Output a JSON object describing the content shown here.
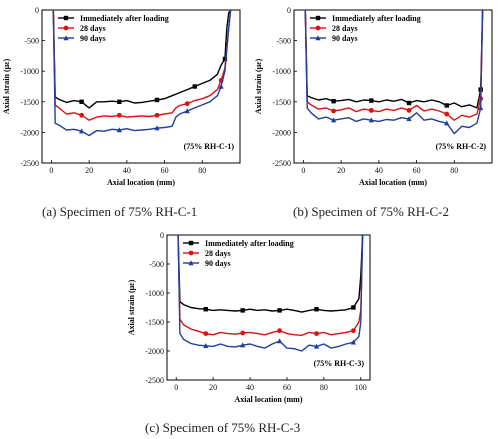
{
  "figure": {
    "captions": [
      "(a)  Specimen of 75% RH-C-1",
      "(b)  Specimen of 75% RH-C-2",
      "(c)  Specimen of 75% RH-C-3"
    ]
  },
  "chart_data": [
    {
      "type": "line",
      "panel_label": "(75% RH-C-1)",
      "xlabel": "Axial location (mm)",
      "ylabel": "Axial strain (με)",
      "xlim": [
        -5,
        100
      ],
      "ylim": [
        -2500,
        0
      ],
      "xticks": [
        0,
        20,
        40,
        60,
        80
      ],
      "yticks": [
        0,
        -500,
        -1000,
        -1500,
        -2000,
        -2500
      ],
      "grid": false,
      "legend_position": "top-left",
      "series": [
        {
          "name": "Immediately after loading",
          "color": "#000000",
          "marker": "square",
          "x": [
            1,
            2,
            4,
            8,
            12,
            16,
            20,
            24,
            28,
            32,
            36,
            40,
            44,
            48,
            52,
            56,
            60,
            64,
            68,
            72,
            76,
            80,
            84,
            88,
            90,
            92,
            93,
            94,
            95
          ],
          "y": [
            0,
            -1420,
            -1460,
            -1510,
            -1480,
            -1500,
            -1600,
            -1500,
            -1500,
            -1490,
            -1500,
            -1480,
            -1520,
            -1510,
            -1490,
            -1470,
            -1450,
            -1400,
            -1350,
            -1300,
            -1250,
            -1200,
            -1150,
            -1050,
            -900,
            -800,
            -300,
            -50,
            0
          ]
        },
        {
          "name": "28 days",
          "color": "#dd1111",
          "marker": "circle",
          "x": [
            1,
            2,
            4,
            8,
            12,
            16,
            20,
            24,
            28,
            32,
            36,
            40,
            44,
            48,
            52,
            56,
            60,
            64,
            66,
            68,
            72,
            76,
            80,
            84,
            88,
            90,
            92,
            94,
            95
          ],
          "y": [
            0,
            -1550,
            -1600,
            -1700,
            -1680,
            -1720,
            -1800,
            -1750,
            -1730,
            -1740,
            -1720,
            -1750,
            -1740,
            -1730,
            -1740,
            -1720,
            -1700,
            -1680,
            -1600,
            -1560,
            -1530,
            -1480,
            -1450,
            -1400,
            -1300,
            -1150,
            -950,
            -300,
            0
          ]
        },
        {
          "name": "90 days",
          "color": "#1f3fa0",
          "marker": "triangle",
          "x": [
            1,
            2,
            4,
            8,
            12,
            16,
            20,
            24,
            28,
            32,
            36,
            40,
            44,
            48,
            52,
            56,
            60,
            64,
            66,
            68,
            72,
            76,
            80,
            84,
            88,
            90,
            92,
            94,
            95
          ],
          "y": [
            0,
            -1850,
            -1880,
            -1960,
            -1950,
            -1980,
            -2050,
            -1970,
            -1980,
            -1950,
            -1960,
            -1940,
            -1970,
            -1960,
            -1950,
            -1930,
            -1920,
            -1900,
            -1750,
            -1700,
            -1650,
            -1600,
            -1550,
            -1500,
            -1400,
            -1250,
            -1000,
            -300,
            0
          ]
        }
      ]
    },
    {
      "type": "line",
      "panel_label": "(75% RH-C-2)",
      "xlabel": "Axial location (mm)",
      "ylabel": "Axial strain (με)",
      "xlim": [
        -5,
        100
      ],
      "ylim": [
        -2500,
        0
      ],
      "xticks": [
        0,
        20,
        40,
        60,
        80
      ],
      "yticks": [
        0,
        -500,
        -1000,
        -1500,
        -2000,
        -2500
      ],
      "grid": false,
      "legend_position": "top-left",
      "series": [
        {
          "name": "Immediately after loading",
          "color": "#000000",
          "marker": "square",
          "x": [
            1,
            2,
            4,
            8,
            12,
            16,
            20,
            24,
            28,
            32,
            36,
            40,
            44,
            48,
            52,
            56,
            60,
            64,
            68,
            72,
            76,
            80,
            84,
            88,
            92,
            94,
            95
          ],
          "y": [
            0,
            -1400,
            -1430,
            -1470,
            -1450,
            -1490,
            -1480,
            -1460,
            -1500,
            -1470,
            -1480,
            -1500,
            -1470,
            -1490,
            -1460,
            -1520,
            -1480,
            -1500,
            -1470,
            -1500,
            -1560,
            -1520,
            -1580,
            -1550,
            -1600,
            -1300,
            0
          ]
        },
        {
          "name": "28 days",
          "color": "#dd1111",
          "marker": "circle",
          "x": [
            1,
            2,
            4,
            8,
            12,
            16,
            20,
            24,
            28,
            32,
            36,
            40,
            44,
            48,
            52,
            56,
            60,
            64,
            68,
            72,
            76,
            80,
            84,
            88,
            92,
            94,
            95
          ],
          "y": [
            0,
            -1500,
            -1550,
            -1620,
            -1600,
            -1650,
            -1630,
            -1600,
            -1660,
            -1620,
            -1640,
            -1660,
            -1620,
            -1640,
            -1600,
            -1640,
            -1560,
            -1650,
            -1620,
            -1650,
            -1700,
            -1800,
            -1720,
            -1750,
            -1700,
            -1450,
            0
          ]
        },
        {
          "name": "90 days",
          "color": "#1f3fa0",
          "marker": "triangle",
          "x": [
            1,
            2,
            4,
            8,
            12,
            16,
            20,
            24,
            28,
            32,
            36,
            40,
            44,
            48,
            52,
            56,
            60,
            64,
            68,
            72,
            76,
            80,
            84,
            88,
            92,
            94,
            95
          ],
          "y": [
            0,
            -1600,
            -1680,
            -1780,
            -1750,
            -1800,
            -1780,
            -1760,
            -1820,
            -1780,
            -1800,
            -1820,
            -1790,
            -1800,
            -1760,
            -1780,
            -1680,
            -1800,
            -1780,
            -1820,
            -1850,
            -2020,
            -1900,
            -1920,
            -1850,
            -1600,
            0
          ]
        }
      ]
    },
    {
      "type": "line",
      "panel_label": "(75% RH-C-3)",
      "xlabel": "Axial location (mm)",
      "ylabel": "Axial strain (με)",
      "xlim": [
        -5,
        105
      ],
      "ylim": [
        -2500,
        0
      ],
      "xticks": [
        0,
        20,
        40,
        60,
        80,
        100
      ],
      "yticks": [
        0,
        -500,
        -1000,
        -1500,
        -2000,
        -2500
      ],
      "grid": false,
      "legend_position": "top-left",
      "series": [
        {
          "name": "Immediately after loading",
          "color": "#000000",
          "marker": "square",
          "x": [
            1,
            2,
            4,
            8,
            12,
            16,
            20,
            24,
            28,
            32,
            36,
            40,
            44,
            48,
            52,
            56,
            60,
            64,
            68,
            72,
            76,
            80,
            84,
            88,
            92,
            96,
            99,
            100,
            101
          ],
          "y": [
            0,
            -1150,
            -1200,
            -1250,
            -1270,
            -1280,
            -1300,
            -1290,
            -1300,
            -1310,
            -1300,
            -1280,
            -1300,
            -1290,
            -1310,
            -1300,
            -1280,
            -1300,
            -1330,
            -1300,
            -1280,
            -1300,
            -1310,
            -1300,
            -1290,
            -1250,
            -1100,
            -700,
            0
          ]
        },
        {
          "name": "28 days",
          "color": "#dd1111",
          "marker": "circle",
          "x": [
            1,
            2,
            4,
            8,
            12,
            16,
            20,
            24,
            28,
            32,
            36,
            40,
            44,
            48,
            52,
            56,
            60,
            64,
            68,
            72,
            76,
            80,
            84,
            88,
            92,
            96,
            99,
            100,
            101
          ],
          "y": [
            0,
            -1450,
            -1550,
            -1620,
            -1660,
            -1700,
            -1720,
            -1680,
            -1700,
            -1710,
            -1690,
            -1680,
            -1700,
            -1720,
            -1680,
            -1650,
            -1700,
            -1720,
            -1730,
            -1680,
            -1700,
            -1680,
            -1720,
            -1700,
            -1680,
            -1650,
            -1500,
            -1300,
            0
          ]
        },
        {
          "name": "90 days",
          "color": "#1f3fa0",
          "marker": "triangle",
          "x": [
            1,
            2,
            4,
            8,
            12,
            16,
            20,
            24,
            28,
            32,
            36,
            40,
            44,
            48,
            52,
            56,
            60,
            64,
            68,
            72,
            76,
            80,
            84,
            88,
            92,
            96,
            99,
            100,
            101
          ],
          "y": [
            0,
            -1700,
            -1800,
            -1870,
            -1900,
            -1910,
            -1920,
            -1880,
            -1920,
            -1930,
            -1900,
            -1880,
            -1920,
            -1950,
            -1880,
            -1830,
            -1950,
            -1960,
            -2000,
            -1900,
            -1920,
            -1880,
            -1950,
            -1920,
            -1880,
            -1850,
            -1750,
            -1500,
            0
          ]
        }
      ]
    }
  ]
}
